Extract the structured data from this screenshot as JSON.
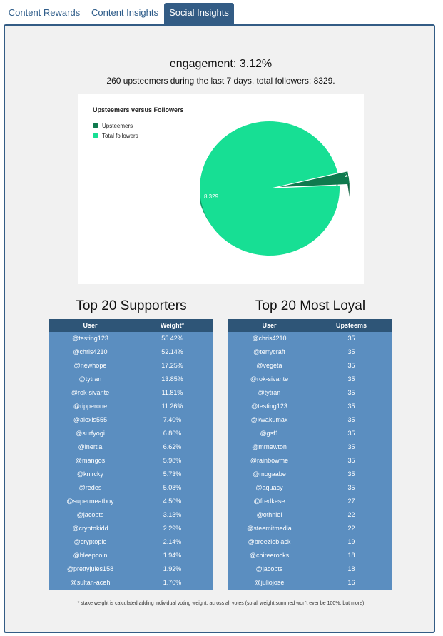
{
  "tabs": [
    {
      "label": "Content Rewards"
    },
    {
      "label": "Content Insights"
    },
    {
      "label": "Social Insights",
      "active": true
    }
  ],
  "engagement": "engagement: 3.12%",
  "summary": "260 upsteemers during the last 7 days, total followers: 8329.",
  "chart_data": {
    "type": "pie",
    "title": "Upsteemers versus Followers",
    "series": [
      {
        "name": "Upsteemers",
        "value": 260,
        "label": "260",
        "color": "#0f7a4e"
      },
      {
        "name": "Total followers",
        "value": 8329,
        "label": "8,329",
        "color": "#17df94"
      }
    ],
    "legend": "top-left",
    "style": "3d"
  },
  "supporters": {
    "title": "Top 20 Supporters",
    "columns": [
      "User",
      "Weight*"
    ],
    "rows": [
      [
        "@testing123",
        "55.42%"
      ],
      [
        "@chris4210",
        "52.14%"
      ],
      [
        "@newhope",
        "17.25%"
      ],
      [
        "@tytran",
        "13.85%"
      ],
      [
        "@rok-sivante",
        "11.81%"
      ],
      [
        "@ripperone",
        "11.26%"
      ],
      [
        "@alexis555",
        "7.40%"
      ],
      [
        "@surfyogi",
        "6.86%"
      ],
      [
        "@inertia",
        "6.62%"
      ],
      [
        "@mangos",
        "5.98%"
      ],
      [
        "@knircky",
        "5.73%"
      ],
      [
        "@redes",
        "5.08%"
      ],
      [
        "@supermeatboy",
        "4.50%"
      ],
      [
        "@jacobts",
        "3.13%"
      ],
      [
        "@cryptokidd",
        "2.29%"
      ],
      [
        "@cryptopie",
        "2.14%"
      ],
      [
        "@bleepcoin",
        "1.94%"
      ],
      [
        "@prettyjules158",
        "1.92%"
      ],
      [
        "@sultan-aceh",
        "1.70%"
      ]
    ]
  },
  "loyal": {
    "title": "Top 20 Most Loyal",
    "columns": [
      "User",
      "Upsteems"
    ],
    "rows": [
      [
        "@chris4210",
        "35"
      ],
      [
        "@terrycraft",
        "35"
      ],
      [
        "@vegeta",
        "35"
      ],
      [
        "@rok-sivante",
        "35"
      ],
      [
        "@tytran",
        "35"
      ],
      [
        "@testing123",
        "35"
      ],
      [
        "@kwakumax",
        "35"
      ],
      [
        "@gsf1",
        "35"
      ],
      [
        "@mrnewton",
        "35"
      ],
      [
        "@rainbowme",
        "35"
      ],
      [
        "@mogaabe",
        "35"
      ],
      [
        "@aquacy",
        "35"
      ],
      [
        "@fredkese",
        "27"
      ],
      [
        "@othniel",
        "22"
      ],
      [
        "@steemitmedia",
        "22"
      ],
      [
        "@breezieblack",
        "19"
      ],
      [
        "@chireerocks",
        "18"
      ],
      [
        "@jacobts",
        "18"
      ],
      [
        "@juliojose",
        "16"
      ]
    ]
  },
  "footnote": "* stake weight is calculated adding individual voting weight, across all votes (so all weight summed won't ever be 100%, but more)",
  "colors": {
    "accent": "#335c85",
    "table_header": "#2e5577",
    "table_row": "#5b8ec0",
    "panel_bg": "#f1f1f1"
  }
}
